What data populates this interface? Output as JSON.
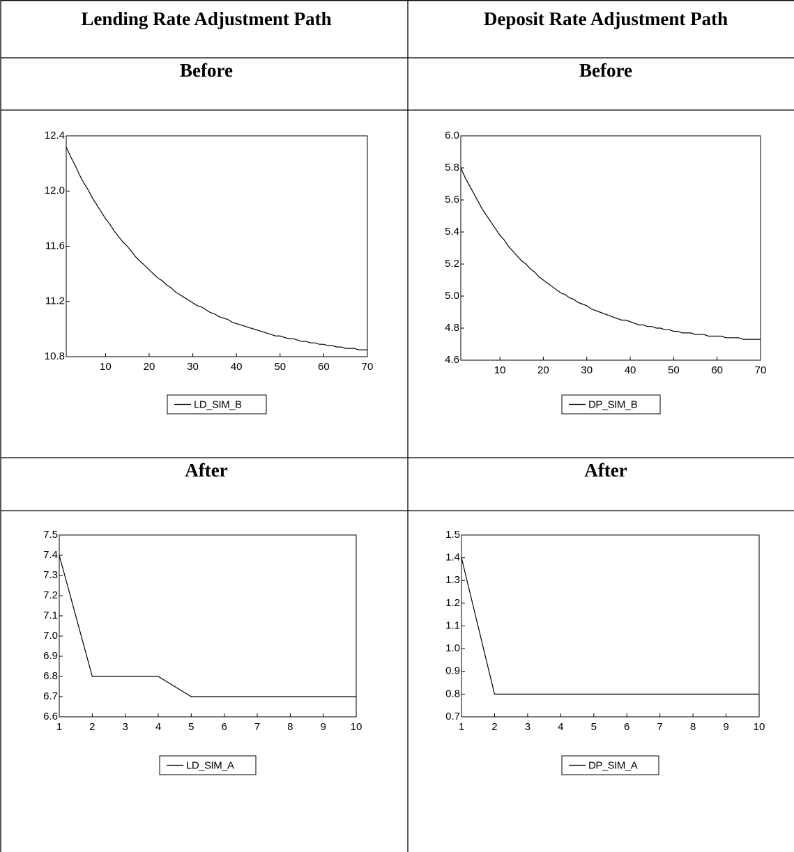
{
  "table": {
    "headers": [
      "Lending Rate Adjustment Path",
      "Deposit Rate Adjustment Path"
    ],
    "rows": [
      [
        "Before",
        "Before"
      ],
      [
        "After",
        "After"
      ]
    ]
  },
  "chart_data": [
    {
      "type": "line",
      "legend": "bottom",
      "x": [
        1,
        2,
        3,
        4,
        5,
        6,
        7,
        8,
        9,
        10,
        11,
        12,
        13,
        14,
        15,
        16,
        17,
        18,
        19,
        20,
        21,
        22,
        23,
        24,
        25,
        26,
        27,
        28,
        29,
        30,
        31,
        32,
        33,
        34,
        35,
        36,
        37,
        38,
        39,
        40,
        41,
        42,
        43,
        44,
        45,
        46,
        47,
        48,
        49,
        50,
        51,
        52,
        53,
        54,
        55,
        56,
        57,
        58,
        59,
        60,
        61,
        62,
        63,
        64,
        65,
        66,
        67,
        68,
        69,
        70
      ],
      "series": [
        {
          "name": "LD_SIM_B",
          "color": "#000000",
          "values": [
            12.32,
            12.25,
            12.19,
            12.12,
            12.06,
            12.01,
            11.95,
            11.9,
            11.85,
            11.8,
            11.76,
            11.71,
            11.67,
            11.63,
            11.6,
            11.56,
            11.52,
            11.49,
            11.46,
            11.43,
            11.4,
            11.37,
            11.35,
            11.32,
            11.3,
            11.27,
            11.25,
            11.23,
            11.21,
            11.19,
            11.17,
            11.16,
            11.14,
            11.12,
            11.11,
            11.09,
            11.08,
            11.07,
            11.05,
            11.04,
            11.03,
            11.02,
            11.01,
            11.0,
            10.99,
            10.98,
            10.97,
            10.96,
            10.95,
            10.95,
            10.94,
            10.93,
            10.93,
            10.92,
            10.91,
            10.91,
            10.9,
            10.9,
            10.89,
            10.89,
            10.88,
            10.88,
            10.87,
            10.87,
            10.86,
            10.86,
            10.86,
            10.85,
            10.85,
            10.85
          ]
        }
      ],
      "xlim": [
        1,
        70
      ],
      "xticks": [
        10,
        20,
        30,
        40,
        50,
        60,
        70
      ],
      "ylim": [
        10.8,
        12.4
      ],
      "yticks": [
        10.8,
        11.2,
        11.6,
        {
          "value": 12.0,
          "label": "12.0"
        },
        12.4
      ]
    },
    {
      "type": "line",
      "legend": "bottom",
      "x": [
        1,
        2,
        3,
        4,
        5,
        6,
        7,
        8,
        9,
        10,
        11,
        12,
        13,
        14,
        15,
        16,
        17,
        18,
        19,
        20,
        21,
        22,
        23,
        24,
        25,
        26,
        27,
        28,
        29,
        30,
        31,
        32,
        33,
        34,
        35,
        36,
        37,
        38,
        39,
        40,
        41,
        42,
        43,
        44,
        45,
        46,
        47,
        48,
        49,
        50,
        51,
        52,
        53,
        54,
        55,
        56,
        57,
        58,
        59,
        60,
        61,
        62,
        63,
        64,
        65,
        66,
        67,
        68,
        69,
        70
      ],
      "series": [
        {
          "name": "DP_SIM_B",
          "color": "#000000",
          "values": [
            5.8,
            5.74,
            5.69,
            5.64,
            5.59,
            5.54,
            5.5,
            5.46,
            5.42,
            5.38,
            5.35,
            5.31,
            5.28,
            5.25,
            5.22,
            5.2,
            5.17,
            5.15,
            5.12,
            5.1,
            5.08,
            5.06,
            5.04,
            5.02,
            5.01,
            4.99,
            4.98,
            4.96,
            4.95,
            4.94,
            4.92,
            4.91,
            4.9,
            4.89,
            4.88,
            4.87,
            4.86,
            4.85,
            4.85,
            4.84,
            4.83,
            4.82,
            4.82,
            4.81,
            4.81,
            4.8,
            4.8,
            4.79,
            4.79,
            4.78,
            4.78,
            4.77,
            4.77,
            4.77,
            4.76,
            4.76,
            4.76,
            4.75,
            4.75,
            4.75,
            4.75,
            4.74,
            4.74,
            4.74,
            4.74,
            4.73,
            4.73,
            4.73,
            4.73,
            4.73
          ]
        }
      ],
      "xlim": [
        1,
        70
      ],
      "xticks": [
        10,
        20,
        30,
        40,
        50,
        60,
        70
      ],
      "ylim": [
        4.6,
        6.0
      ],
      "yticks": [
        4.6,
        4.8,
        {
          "value": 5.0,
          "label": "5.0"
        },
        5.2,
        5.4,
        5.6,
        5.8,
        {
          "value": 6.0,
          "label": "6.0"
        }
      ]
    },
    {
      "type": "line",
      "legend": "bottom",
      "x": [
        1,
        2,
        3,
        4,
        5,
        6,
        7,
        8,
        9,
        10
      ],
      "series": [
        {
          "name": "LD_SIM_A",
          "color": "#000000",
          "values": [
            7.4,
            6.8,
            6.8,
            6.8,
            6.7,
            6.7,
            6.7,
            6.7,
            6.7,
            6.7
          ]
        }
      ],
      "xlim": [
        1,
        10
      ],
      "xticks": [
        1,
        2,
        3,
        4,
        5,
        6,
        7,
        8,
        9,
        10
      ],
      "ylim": [
        6.6,
        7.5
      ],
      "yticks": [
        6.6,
        6.7,
        6.8,
        6.9,
        {
          "value": 7.0,
          "label": "7.0"
        },
        7.1,
        7.2,
        7.3,
        7.4,
        7.5
      ]
    },
    {
      "type": "line",
      "legend": "bottom",
      "x": [
        1,
        2,
        3,
        4,
        5,
        6,
        7,
        8,
        9,
        10
      ],
      "series": [
        {
          "name": "DP_SIM_A",
          "color": "#000000",
          "values": [
            1.4,
            0.8,
            0.8,
            0.8,
            0.8,
            0.8,
            0.8,
            0.8,
            0.8,
            0.8
          ]
        }
      ],
      "xlim": [
        1,
        10
      ],
      "xticks": [
        1,
        2,
        3,
        4,
        5,
        6,
        7,
        8,
        9,
        10
      ],
      "ylim": [
        0.7,
        1.5
      ],
      "yticks": [
        0.7,
        0.8,
        0.9,
        {
          "value": 1.0,
          "label": "1.0"
        },
        1.1,
        1.2,
        1.3,
        1.4,
        1.5
      ]
    }
  ]
}
